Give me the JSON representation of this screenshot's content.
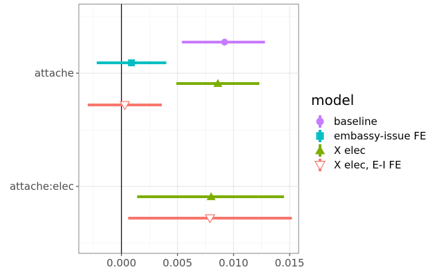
{
  "chart_data": {
    "type": "scatter",
    "subtype": "coefficient-plot",
    "orientation": "horizontal",
    "xlim": [
      -0.0038,
      0.0158
    ],
    "x_ticks": [
      0.0,
      0.005,
      0.01,
      0.015
    ],
    "x_tick_labels": [
      "0.000",
      "0.005",
      "0.010",
      "0.015"
    ],
    "y_categories": [
      "attache",
      "attache:elec"
    ],
    "reference_line_x": 0,
    "grid": true,
    "legend": {
      "title": "model",
      "placement": "right",
      "entries": [
        "baseline",
        "embassy-issue FE",
        "X elec",
        "X elec, E-I FE"
      ]
    },
    "series": [
      {
        "name": "baseline",
        "color": "#c77cff",
        "marker": "circle",
        "points": [
          {
            "term": "attache",
            "estimate": 0.0092,
            "lower": 0.0054,
            "upper": 0.0128
          }
        ]
      },
      {
        "name": "embassy-issue FE",
        "color": "#00bfc4",
        "marker": "square",
        "points": [
          {
            "term": "attache",
            "estimate": 0.0009,
            "lower": -0.0022,
            "upper": 0.004
          }
        ]
      },
      {
        "name": "X elec",
        "color": "#7cae00",
        "marker": "triangle",
        "points": [
          {
            "term": "attache",
            "estimate": 0.0086,
            "lower": 0.0049,
            "upper": 0.0123
          },
          {
            "term": "attache:elec",
            "estimate": 0.008,
            "lower": 0.0014,
            "upper": 0.0145
          }
        ]
      },
      {
        "name": "X elec, E-I FE",
        "color": "#f8766d",
        "marker": "triangle-down-open",
        "points": [
          {
            "term": "attache",
            "estimate": 0.0003,
            "lower": -0.003,
            "upper": 0.0036
          },
          {
            "term": "attache:elec",
            "estimate": 0.0079,
            "lower": 0.0006,
            "upper": 0.0152
          }
        ]
      }
    ]
  }
}
